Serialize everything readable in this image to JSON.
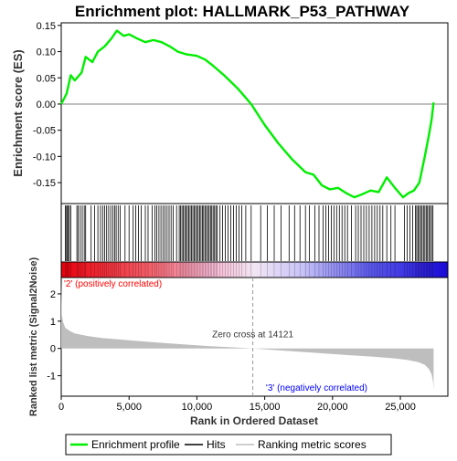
{
  "chart_data": {
    "type": "line",
    "title": "Enrichment plot: HALLMARK_P53_PATHWAY",
    "colors": {
      "profile": "#00ee00",
      "hits": "#000000",
      "metric": "#bebebe",
      "pos_label": "#ff0000",
      "neg_label": "#0000ff",
      "zero_line": "#808080"
    },
    "es_panel": {
      "ylabel": "Enrichment score (ES)",
      "ylim": [
        -0.19,
        0.155
      ],
      "yticks": [
        -0.15,
        -0.1,
        -0.05,
        0.0,
        0.05,
        0.1,
        0.15
      ],
      "ytick_labels": [
        "-0.15",
        "-0.10",
        "-0.05",
        "0.00",
        "0.05",
        "0.10",
        "0.15"
      ],
      "profile": {
        "name": "Enrichment profile",
        "x": [
          0,
          400,
          700,
          1000,
          1500,
          1800,
          2300,
          2700,
          3200,
          3700,
          4100,
          4600,
          5000,
          5600,
          6200,
          6800,
          7400,
          8000,
          8600,
          9200,
          10000,
          10600,
          11200,
          12000,
          13000,
          14000,
          15000,
          16000,
          17000,
          18000,
          18600,
          19200,
          19800,
          20400,
          21000,
          21600,
          22200,
          22800,
          23400,
          24000,
          24600,
          25200,
          25600,
          26000,
          26400,
          26800,
          27100,
          27300,
          27450
        ],
        "y": [
          0.0,
          0.02,
          0.055,
          0.045,
          0.06,
          0.09,
          0.08,
          0.1,
          0.11,
          0.125,
          0.14,
          0.13,
          0.133,
          0.125,
          0.118,
          0.122,
          0.118,
          0.11,
          0.1,
          0.095,
          0.092,
          0.085,
          0.073,
          0.055,
          0.03,
          0.0,
          -0.04,
          -0.075,
          -0.105,
          -0.13,
          -0.135,
          -0.155,
          -0.163,
          -0.16,
          -0.17,
          -0.178,
          -0.172,
          -0.165,
          -0.168,
          -0.14,
          -0.16,
          -0.178,
          -0.17,
          -0.165,
          -0.15,
          -0.1,
          -0.06,
          -0.03,
          0.003
        ]
      }
    },
    "hits_panel": {
      "name": "Hits",
      "positions": [
        300,
        350,
        450,
        520,
        600,
        700,
        1150,
        1250,
        1400,
        1550,
        1700,
        1800,
        2200,
        2450,
        2700,
        2900,
        3050,
        3200,
        3350,
        3500,
        3650,
        3800,
        3950,
        4050,
        4200,
        4350,
        4700,
        5000,
        5300,
        5500,
        5700,
        5900,
        6200,
        6400,
        6700,
        6900,
        7050,
        7200,
        7350,
        7500,
        7650,
        7800,
        7950,
        8100,
        8250,
        8500,
        8700,
        8800,
        8900,
        9000,
        9100,
        9200,
        9300,
        9400,
        9500,
        9600,
        9700,
        9800,
        9900,
        10000,
        10100,
        10200,
        10300,
        10400,
        10500,
        10600,
        10700,
        10800,
        10900,
        11000,
        11100,
        11200,
        11300,
        11400,
        11500,
        11700,
        11900,
        12100,
        12300,
        12500,
        12700,
        12900,
        13100,
        13300,
        13600,
        14000,
        14700,
        15200,
        15700,
        16200,
        16800,
        17200,
        17600,
        18000,
        18300,
        18700,
        19000,
        19300,
        19500,
        19700,
        19900,
        20100,
        20300,
        20500,
        20700,
        20900,
        21100,
        21400,
        21700,
        21900,
        22100,
        22300,
        22500,
        22700,
        22900,
        23100,
        23300,
        23500,
        23700,
        24000,
        24300,
        24600,
        25300,
        25500,
        25700,
        25900,
        26100,
        26200,
        26300,
        26400,
        26500,
        26600,
        26700,
        26800,
        26900,
        27000,
        27100,
        27200,
        27300,
        27400
      ]
    },
    "metric_panel": {
      "name": "Ranking metric scores",
      "ylabel": "Ranked list metric (Signal2Noise)",
      "xlabel": "Rank in Ordered Dataset",
      "ylim": [
        -1.75,
        2.6
      ],
      "yticks": [
        -1,
        0,
        1,
        2
      ],
      "ytick_labels": [
        "-1",
        "0",
        "1",
        "2"
      ],
      "xlim": [
        0,
        28500
      ],
      "xticks": [
        0,
        5000,
        10000,
        15000,
        20000,
        25000
      ],
      "xtick_labels": [
        "0",
        "5,000",
        "10,000",
        "15,000",
        "20,000",
        "25,000"
      ],
      "x": [
        0,
        50,
        150,
        300,
        600,
        1000,
        2000,
        3000,
        5000,
        7000,
        9000,
        11000,
        13000,
        14121,
        15000,
        17000,
        19000,
        21000,
        23000,
        24500,
        25500,
        26300,
        26800,
        27100,
        27300,
        27400,
        27450
      ],
      "y": [
        2.45,
        1.2,
        0.95,
        0.75,
        0.65,
        0.55,
        0.45,
        0.38,
        0.3,
        0.22,
        0.15,
        0.08,
        0.03,
        0.0,
        -0.03,
        -0.1,
        -0.17,
        -0.24,
        -0.3,
        -0.36,
        -0.42,
        -0.5,
        -0.6,
        -0.75,
        -0.95,
        -1.2,
        -1.5
      ],
      "zero_cross_label": "Zero cross at 14121",
      "zero_cross": 14121,
      "pos_label": "'2' (positively correlated)",
      "neg_label": "'3' (negatively correlated)"
    },
    "legend": {
      "placement": "bottom",
      "entries": [
        "Enrichment profile",
        "Hits",
        "Ranking metric scores"
      ]
    },
    "n_genes": 27450
  }
}
